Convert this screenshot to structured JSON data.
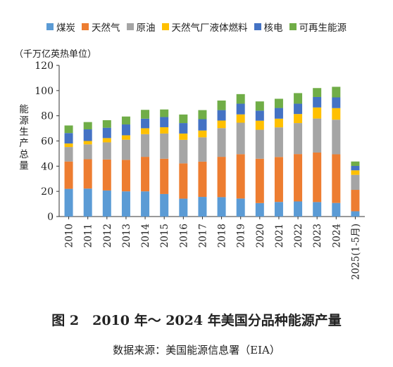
{
  "chart_data": {
    "type": "bar",
    "stacked": true,
    "categories": [
      "2010",
      "2011",
      "2012",
      "2013",
      "2014",
      "2015",
      "2016",
      "2017",
      "2018",
      "2019",
      "2020",
      "2021",
      "2022",
      "2023",
      "2024",
      "2025(1-5月)"
    ],
    "series": [
      {
        "name": "煤炭",
        "color": "#5b9bd5",
        "values": [
          22,
          22.2,
          20.7,
          20,
          20,
          17.9,
          14.2,
          15.6,
          15.4,
          14.3,
          10.7,
          11.6,
          12,
          11.5,
          10.8,
          4.2
        ]
      },
      {
        "name": "天然气",
        "color": "#ed7d31",
        "values": [
          21.7,
          23.3,
          24.6,
          25,
          27.4,
          28,
          28,
          28,
          32,
          35.2,
          35.2,
          35.7,
          37.6,
          39.3,
          38.6,
          17
        ]
      },
      {
        "name": "原油",
        "color": "#a5a5a5",
        "values": [
          11.5,
          11.8,
          13.6,
          16,
          18,
          20,
          18.7,
          19.3,
          22.8,
          25,
          23,
          23.5,
          24.6,
          27,
          27.5,
          11.9
        ]
      },
      {
        "name": "天然气厂液体燃料",
        "color": "#ffc000",
        "values": [
          2.8,
          2.7,
          3.4,
          3.5,
          4.7,
          5,
          5,
          5.4,
          6,
          6.6,
          7.2,
          6.9,
          7.2,
          8.8,
          9.2,
          3.6
        ]
      },
      {
        "name": "核电",
        "color": "#4472c4",
        "values": [
          8.3,
          9.2,
          8.2,
          8.6,
          7.6,
          8.1,
          8.3,
          9,
          8.3,
          8.5,
          8,
          8.5,
          8.2,
          8.3,
          8.5,
          3.5
        ]
      },
      {
        "name": "可再生能源",
        "color": "#70ad47",
        "values": [
          6,
          5.8,
          6,
          6.3,
          7,
          6,
          6.8,
          7.2,
          7.6,
          7.6,
          7.3,
          7.3,
          8.4,
          7.1,
          8.4,
          3.5
        ]
      }
    ],
    "ylim": [
      0,
      120
    ],
    "yticks": [
      0,
      20,
      40,
      60,
      80,
      100,
      120
    ],
    "unit": "（千万亿英热单位）",
    "ylabel": "能源生产总量",
    "legend_position": "top"
  },
  "caption": "图 2　2010 年～ 2024 年美国分品种能源产量",
  "source": "数据来源：美国能源信息署（EIA）"
}
